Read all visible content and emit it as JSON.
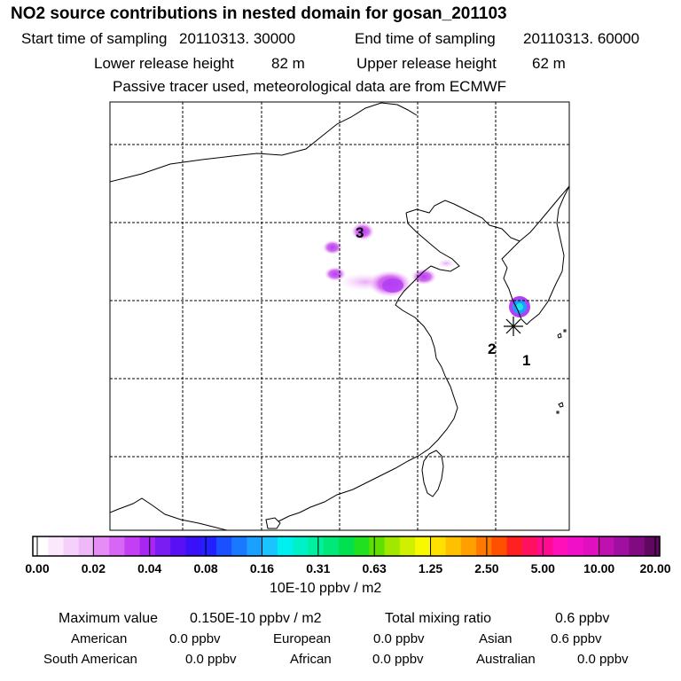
{
  "title": "NO2 source contributions in nested domain for gosan_201103",
  "header": {
    "start_label": "Start time of sampling",
    "start_value": "20110313. 30000",
    "end_label": "End time of sampling",
    "end_value": "20110313. 60000",
    "lower_label": "Lower release height",
    "lower_value": "82 m",
    "upper_label": "Upper release height",
    "upper_value": "62 m",
    "note": "Passive tracer used, meteorological data are from ECMWF"
  },
  "map": {
    "site_labels": [
      "3",
      "2",
      "1"
    ],
    "plume_colors": [
      "#f6d6fb",
      "#e9a6f6",
      "#d36af0",
      "#b23ff2",
      "#1f9cff",
      "#1ce6e0"
    ],
    "coast_color": "#000000",
    "grid_color": "#000000"
  },
  "colorbar": {
    "colors": [
      "#ffffff",
      "#fbe8fd",
      "#f5d0fb",
      "#efb8f9",
      "#e58cf7",
      "#d866f5",
      "#c33ff4",
      "#a826f2",
      "#7a1df3",
      "#5a10f5",
      "#3a10f8",
      "#2220ff",
      "#1a50ff",
      "#1a78ff",
      "#1aa0ff",
      "#1ac4ff",
      "#00f0f0",
      "#00f0c8",
      "#00f0a0",
      "#00e878",
      "#00e050",
      "#20e020",
      "#60e000",
      "#a0e800",
      "#d0f000",
      "#f8f800",
      "#ffe000",
      "#ffc000",
      "#ffa000",
      "#ff7800",
      "#ff5000",
      "#ff2020",
      "#ff1060",
      "#ff0a90",
      "#ff10b8",
      "#f010c8",
      "#e010c0",
      "#c010b0",
      "#a010a0",
      "#800a80",
      "#600860"
    ],
    "tick_labels": [
      "0.00",
      "0.02",
      "0.04",
      "0.08",
      "0.16",
      "0.31",
      "0.63",
      "1.25",
      "2.50",
      "5.00",
      "10.00",
      "20.00"
    ],
    "unit": "10E-10 ppbv / m2"
  },
  "stats": {
    "max_label": "Maximum value",
    "max_value": "0.150E-10 ppbv / m2",
    "total_label": "Total mixing ratio",
    "total_value": "0.6 ppbv",
    "regions": [
      {
        "name": "American",
        "value": "0.0 ppbv"
      },
      {
        "name": "European",
        "value": "0.0 ppbv"
      },
      {
        "name": "Asian",
        "value": "0.6 ppbv"
      },
      {
        "name": "South American",
        "value": "0.0 ppbv"
      },
      {
        "name": "African",
        "value": "0.0 ppbv"
      },
      {
        "name": "Australian",
        "value": "0.0 ppbv"
      }
    ]
  }
}
